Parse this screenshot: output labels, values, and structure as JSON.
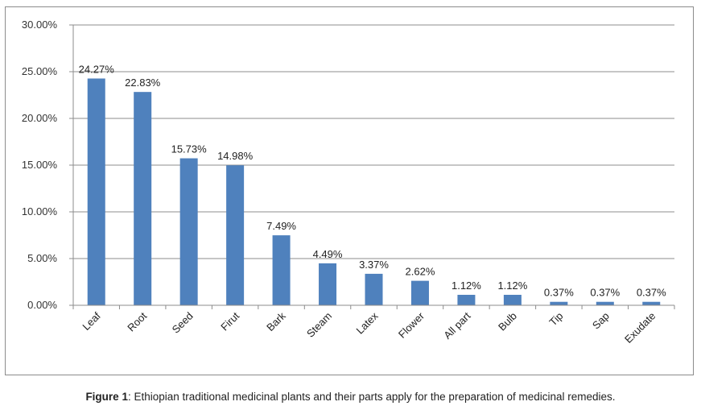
{
  "chart_data": {
    "type": "bar",
    "categories": [
      "Leaf",
      "Root",
      "Seed",
      "Firut",
      "Bark",
      "Steam",
      "Latex",
      "Flower",
      "All part",
      "Bulb",
      "Tip",
      "Sap",
      "Exudate"
    ],
    "values": [
      24.27,
      22.83,
      15.73,
      14.98,
      7.49,
      4.49,
      3.37,
      2.62,
      1.12,
      1.12,
      0.37,
      0.37,
      0.37
    ],
    "data_labels": [
      "24.27%",
      "22.83%",
      "15.73%",
      "14.98%",
      "7.49%",
      "4.49%",
      "3.37%",
      "2.62%",
      "1.12%",
      "1.12%",
      "0.37%",
      "0.37%",
      "0.37%"
    ],
    "y_ticks": [
      0,
      5,
      10,
      15,
      20,
      25,
      30
    ],
    "y_tick_labels": [
      "0.00%",
      "5.00%",
      "10.00%",
      "15.00%",
      "20.00%",
      "25.00%",
      "30.00%"
    ],
    "ylim": [
      0,
      30
    ],
    "grid": true,
    "legend": "none",
    "bar_color": "#4f81bd",
    "grid_color": "#8c8c8c",
    "axis_color": "#8c8c8c"
  },
  "caption": {
    "label": "Figure 1",
    "text": ": Ethiopian traditional medicinal plants and their parts apply for the preparation of medicinal remedies."
  }
}
